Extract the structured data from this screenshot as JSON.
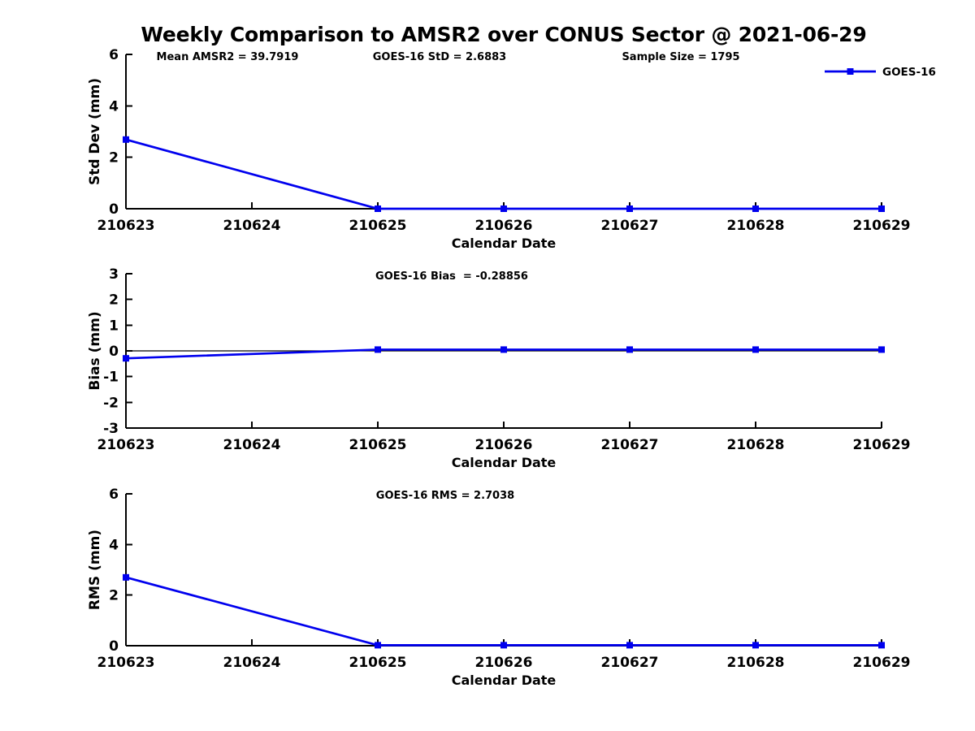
{
  "title": "Weekly Comparison to AMSR2 over CONUS Sector @ 2021-06-29",
  "accent_color": "#0000ee",
  "axis_color": "#000000",
  "chart_data": [
    {
      "type": "line",
      "id": "std-dev",
      "ylabel": "Std Dev (mm)",
      "xlabel": "Calendar Date",
      "ylim": [
        0,
        6
      ],
      "yticks": [
        0,
        2,
        4,
        6
      ],
      "x_categories": [
        "210623",
        "210624",
        "210625",
        "210626",
        "210627",
        "210628",
        "210629"
      ],
      "grid": false,
      "annotations": [
        {
          "text": "Mean AMSR2 = 39.7919",
          "x": 280
        },
        {
          "text": "GOES-16 StD = 2.6883",
          "x": 541
        },
        {
          "text": "Sample Size = 1795",
          "x": 838
        }
      ],
      "legend": {
        "label": "GOES-16",
        "position": "top-right"
      },
      "series": [
        {
          "name": "GOES-16",
          "color": "#0000ee",
          "marker": "square",
          "points": [
            [
              "210623",
              2.69
            ],
            [
              "210625",
              0.0
            ],
            [
              "210626",
              0.0
            ],
            [
              "210627",
              0.0
            ],
            [
              "210628",
              0.0
            ],
            [
              "210629",
              0.0
            ]
          ]
        }
      ]
    },
    {
      "type": "line",
      "id": "bias",
      "ylabel": "Bias (mm)",
      "xlabel": "Calendar Date",
      "ylim": [
        -3,
        3
      ],
      "yticks": [
        -3,
        -2,
        -1,
        0,
        1,
        2,
        3
      ],
      "zero_line": true,
      "x_categories": [
        "210623",
        "210624",
        "210625",
        "210626",
        "210627",
        "210628",
        "210629"
      ],
      "grid": false,
      "annotations": [
        {
          "text": "GOES-16 Bias  = -0.28856",
          "x": 556
        }
      ],
      "series": [
        {
          "name": "GOES-16",
          "color": "#0000ee",
          "marker": "square",
          "points": [
            [
              "210623",
              -0.29
            ],
            [
              "210625",
              0.05
            ],
            [
              "210626",
              0.05
            ],
            [
              "210627",
              0.05
            ],
            [
              "210628",
              0.05
            ],
            [
              "210629",
              0.05
            ]
          ]
        }
      ]
    },
    {
      "type": "line",
      "id": "rms",
      "ylabel": "RMS (mm)",
      "xlabel": "Calendar Date",
      "ylim": [
        0,
        6
      ],
      "yticks": [
        0,
        2,
        4,
        6
      ],
      "x_categories": [
        "210623",
        "210624",
        "210625",
        "210626",
        "210627",
        "210628",
        "210629"
      ],
      "grid": false,
      "annotations": [
        {
          "text": "GOES-16 RMS = 2.7038",
          "x": 548
        }
      ],
      "series": [
        {
          "name": "GOES-16",
          "color": "#0000ee",
          "marker": "square",
          "points": [
            [
              "210623",
              2.7
            ],
            [
              "210625",
              0.02
            ],
            [
              "210626",
              0.02
            ],
            [
              "210627",
              0.02
            ],
            [
              "210628",
              0.02
            ],
            [
              "210629",
              0.02
            ]
          ]
        }
      ]
    }
  ]
}
